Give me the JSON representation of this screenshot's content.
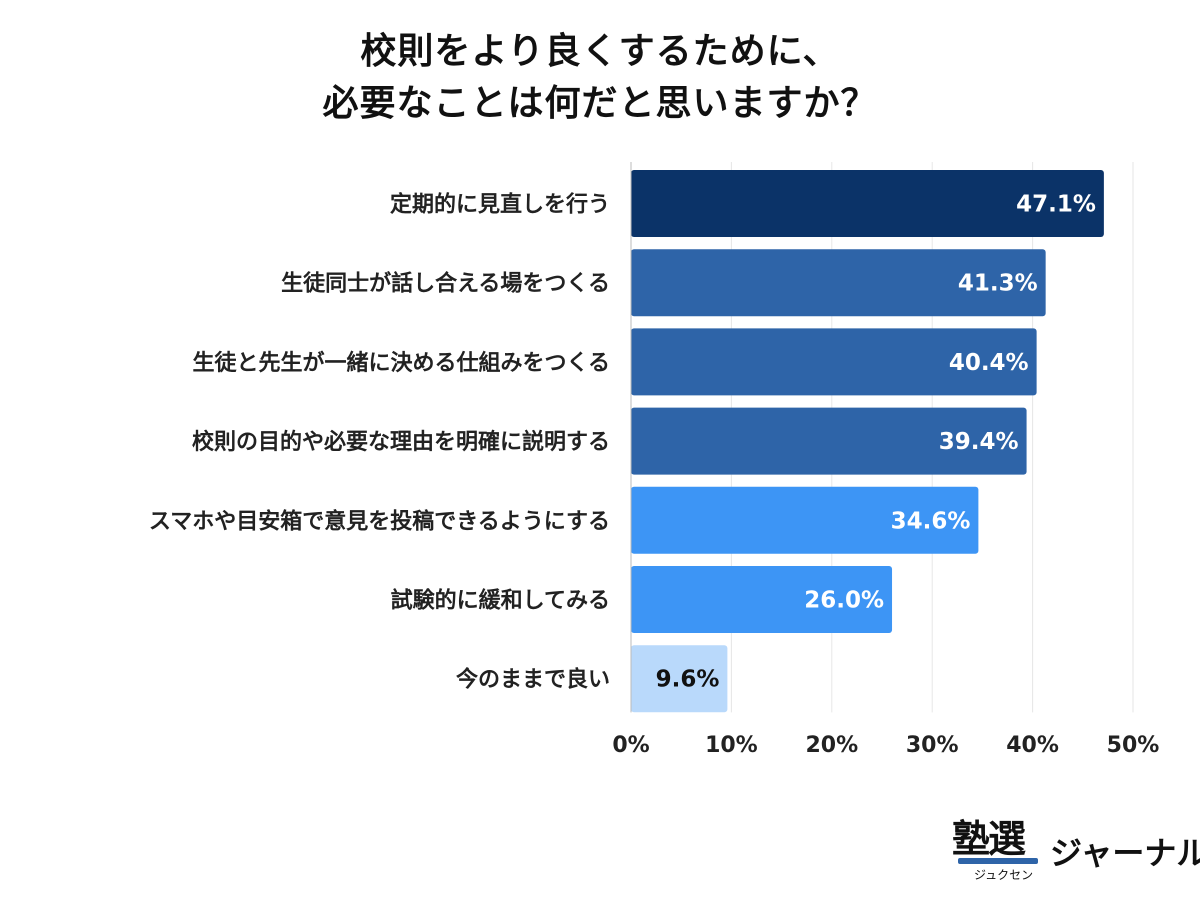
{
  "chart_data": {
    "type": "bar",
    "orientation": "horizontal",
    "title": [
      "校則をより良くするために、",
      "必要なことは何だと思いますか？"
    ],
    "categories": [
      "定期的に見直しを行う",
      "生徒同士が話し合える場をつくる",
      "生徒と先生が一緒に決める仕組みをつくる",
      "校則の目的や必要な理由を明確に説明する",
      "スマホや目安箱で意見を投稿できるようにする",
      "試験的に緩和してみる",
      "今のままで良い"
    ],
    "values": [
      47.1,
      41.3,
      40.4,
      39.4,
      34.6,
      26.0,
      9.6
    ],
    "data_labels": [
      "47.1%",
      "41.3%",
      "40.4%",
      "39.4%",
      "34.6%",
      "26.0%",
      "9.6%"
    ],
    "bar_colors": [
      "#0b3368",
      "#2e64a8",
      "#2e64a8",
      "#2e64a8",
      "#3d95f5",
      "#3d95f5",
      "#b9d9fb"
    ],
    "label_colors": [
      "#ffffff",
      "#ffffff",
      "#ffffff",
      "#ffffff",
      "#ffffff",
      "#ffffff",
      "#111111"
    ],
    "xlim": [
      0,
      50
    ],
    "xticks": [
      "0%",
      "10%",
      "20%",
      "30%",
      "40%",
      "50%"
    ],
    "grid": true,
    "xlabel": "",
    "ylabel": ""
  },
  "logo": {
    "main": "塾選",
    "sub": "ジュクセン",
    "side": "ジャーナル"
  }
}
